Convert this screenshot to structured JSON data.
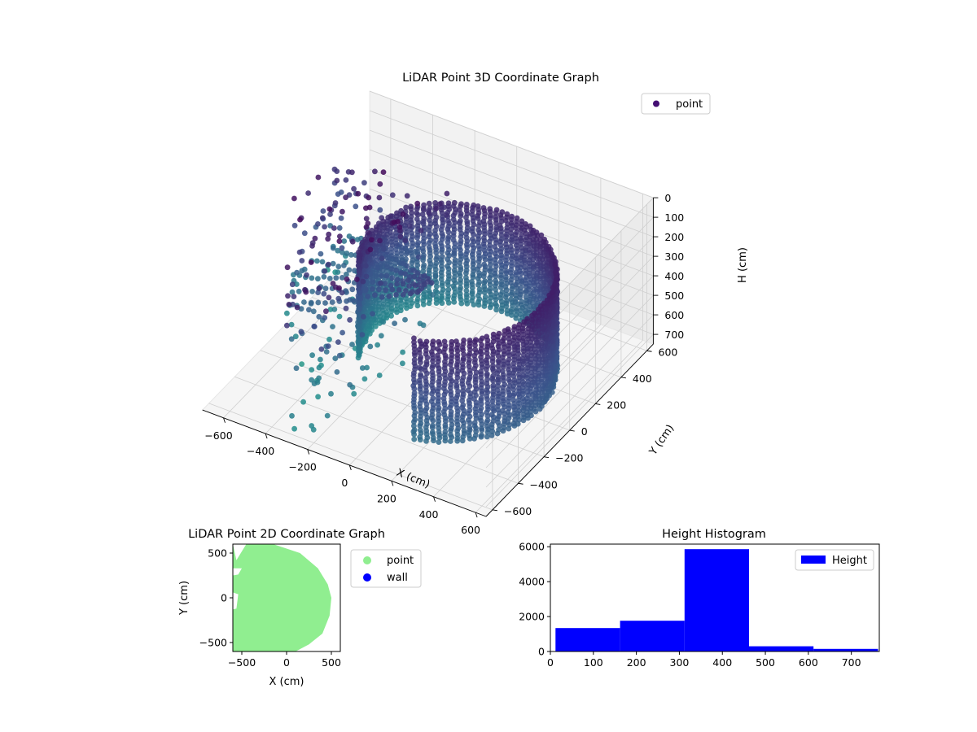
{
  "chart_data": [
    {
      "type": "scatter",
      "title": "LiDAR Point 3D Coordinate Graph",
      "xlabel": "X (cm)",
      "ylabel": "Y (cm)",
      "zlabel": "H (cm)",
      "xlim": [
        -700,
        650
      ],
      "ylim": [
        -650,
        650
      ],
      "zlim": [
        0,
        750
      ],
      "z_inverted": true,
      "x_ticks": [
        "−600",
        "−400",
        "−200",
        "0",
        "200",
        "400",
        "600"
      ],
      "y_ticks": [
        "−600",
        "−400",
        "−200",
        "0",
        "200",
        "400",
        "600"
      ],
      "z_ticks": [
        "0",
        "100",
        "200",
        "300",
        "400",
        "500",
        "600",
        "700"
      ],
      "x_tick_values": [
        -600,
        -400,
        -200,
        0,
        200,
        400,
        600
      ],
      "y_tick_values": [
        -600,
        -400,
        -200,
        0,
        200,
        400,
        600
      ],
      "z_tick_values": [
        0,
        100,
        200,
        300,
        400,
        500,
        600,
        700
      ],
      "grid": true,
      "legend": {
        "position": "top-right",
        "entries": [
          {
            "name": "point",
            "color": "#440f73"
          }
        ]
      },
      "colormap": "viridis",
      "structures": {
        "wall_ring": {
          "center": [
            60,
            0
          ],
          "radius": 450,
          "arc_deg": [
            -75,
            200
          ],
          "h_range": [
            180,
            700
          ]
        },
        "scatter_region": {
          "x_range": [
            -700,
            -150
          ],
          "y_range": [
            -600,
            400
          ],
          "h_range": [
            0,
            750
          ]
        }
      }
    },
    {
      "type": "scatter",
      "title": "LiDAR Point 2D Coordinate Graph",
      "xlabel": "X (cm)",
      "ylabel": "Y (cm)",
      "xlim": [
        -600,
        600
      ],
      "ylim": [
        -600,
        600
      ],
      "x_ticks": [
        "−500",
        "0",
        "500"
      ],
      "y_ticks": [
        "−500",
        "0",
        "500"
      ],
      "x_tick_values": [
        -500,
        0,
        500
      ],
      "y_tick_values": [
        -500,
        0,
        500
      ],
      "legend": {
        "position": "outside-right",
        "entries": [
          {
            "name": "point",
            "color": "#90ee90"
          },
          {
            "name": "wall",
            "color": "#0000ff"
          }
        ]
      },
      "region_outline": [
        [
          -600,
          600
        ],
        [
          -150,
          600
        ],
        [
          150,
          500
        ],
        [
          350,
          330
        ],
        [
          460,
          150
        ],
        [
          500,
          0
        ],
        [
          480,
          -200
        ],
        [
          400,
          -400
        ],
        [
          250,
          -520
        ],
        [
          100,
          -600
        ],
        [
          -600,
          -600
        ]
      ]
    },
    {
      "type": "bar",
      "title": "Height Histogram",
      "xlim": [
        0,
        765
      ],
      "ylim": [
        0,
        6150
      ],
      "x_ticks": [
        "0",
        "100",
        "200",
        "300",
        "400",
        "500",
        "600",
        "700"
      ],
      "y_ticks": [
        "0",
        "2000",
        "4000",
        "6000"
      ],
      "x_tick_values": [
        0,
        100,
        200,
        300,
        400,
        500,
        600,
        700
      ],
      "y_tick_values": [
        0,
        2000,
        4000,
        6000
      ],
      "bin_edges": [
        12,
        162,
        312,
        462,
        612,
        762
      ],
      "values": [
        1340,
        1760,
        5860,
        300,
        150
      ],
      "legend": {
        "position": "top-right",
        "entries": [
          {
            "name": "Height",
            "color": "#0000ff"
          }
        ]
      },
      "bar_color": "#0000ff"
    }
  ]
}
